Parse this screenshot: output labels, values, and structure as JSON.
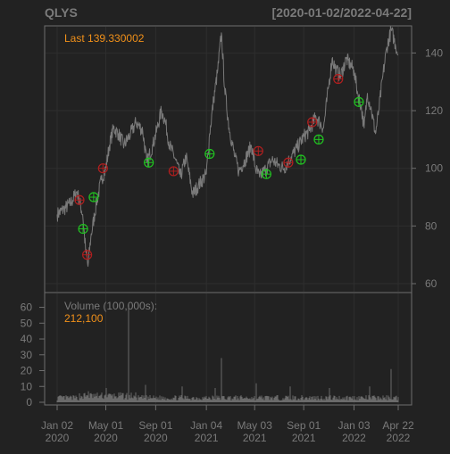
{
  "colors": {
    "background": "#222222",
    "panel": "#222222",
    "frame": "#6e6e6e",
    "grid": "#2e2e2e",
    "price_line": "#7a7a7a",
    "volume_bar": "#6a6a6a",
    "text_dim": "#7a7a7a",
    "accent": "#f0901a",
    "buy_marker": "#21c421",
    "sell_marker": "#b01f1f"
  },
  "header": {
    "symbol": "QLYS",
    "date_range": "[2020-01-02/2022-04-22]"
  },
  "price_panel": {
    "last_label": "Last 139.330002",
    "y_ticks": [
      "60",
      "80",
      "100",
      "120",
      "140"
    ]
  },
  "volume_panel": {
    "title": "Volume (100,000s):",
    "last_value": "212,100",
    "y_ticks": [
      "0",
      "10",
      "20",
      "30",
      "40",
      "50",
      "60"
    ]
  },
  "x_axis": {
    "ticks": [
      {
        "date": "2020-01-02",
        "line1": "Jan 02",
        "line2": "2020"
      },
      {
        "date": "2020-05-01",
        "line1": "May 01",
        "line2": "2020"
      },
      {
        "date": "2020-09-01",
        "line1": "Sep 01",
        "line2": "2020"
      },
      {
        "date": "2021-01-04",
        "line1": "Jan 04",
        "line2": "2021"
      },
      {
        "date": "2021-05-03",
        "line1": "May 03",
        "line2": "2021"
      },
      {
        "date": "2021-09-01",
        "line1": "Sep 01",
        "line2": "2021"
      },
      {
        "date": "2022-01-03",
        "line1": "Jan 03",
        "line2": "2022"
      },
      {
        "date": "2022-04-22",
        "line1": "Apr 22",
        "line2": "2022"
      }
    ]
  },
  "chart_data": {
    "type": "line",
    "x_range": [
      "2020-01-02",
      "2022-04-22"
    ],
    "price_ylim": [
      60,
      146
    ],
    "volume_ylim": [
      0,
      62
    ],
    "price_series": [
      [
        "2020-01-02",
        84
      ],
      [
        "2020-01-20",
        86
      ],
      [
        "2020-02-05",
        88
      ],
      [
        "2020-02-20",
        92
      ],
      [
        "2020-03-05",
        84
      ],
      [
        "2020-03-12",
        72
      ],
      [
        "2020-03-18",
        66
      ],
      [
        "2020-03-25",
        76
      ],
      [
        "2020-04-08",
        88
      ],
      [
        "2020-04-20",
        96
      ],
      [
        "2020-05-01",
        100
      ],
      [
        "2020-05-10",
        108
      ],
      [
        "2020-05-20",
        114
      ],
      [
        "2020-06-01",
        112
      ],
      [
        "2020-06-15",
        108
      ],
      [
        "2020-07-01",
        112
      ],
      [
        "2020-07-15",
        116
      ],
      [
        "2020-07-31",
        113
      ],
      [
        "2020-08-10",
        102
      ],
      [
        "2020-08-25",
        108
      ],
      [
        "2020-09-05",
        114
      ],
      [
        "2020-09-15",
        120
      ],
      [
        "2020-09-25",
        116
      ],
      [
        "2020-10-05",
        108
      ],
      [
        "2020-10-20",
        103
      ],
      [
        "2020-11-01",
        97
      ],
      [
        "2020-11-15",
        104
      ],
      [
        "2020-12-01",
        91
      ],
      [
        "2020-12-15",
        94
      ],
      [
        "2021-01-04",
        98
      ],
      [
        "2021-01-12",
        112
      ],
      [
        "2021-01-22",
        124
      ],
      [
        "2021-02-01",
        134
      ],
      [
        "2021-02-10",
        147
      ],
      [
        "2021-02-18",
        128
      ],
      [
        "2021-03-01",
        114
      ],
      [
        "2021-03-15",
        104
      ],
      [
        "2021-03-25",
        99
      ],
      [
        "2021-04-10",
        103
      ],
      [
        "2021-04-25",
        108
      ],
      [
        "2021-05-05",
        100
      ],
      [
        "2021-05-15",
        97
      ],
      [
        "2021-06-01",
        100
      ],
      [
        "2021-06-15",
        103
      ],
      [
        "2021-07-01",
        101
      ],
      [
        "2021-07-15",
        100
      ],
      [
        "2021-08-01",
        104
      ],
      [
        "2021-08-15",
        107
      ],
      [
        "2021-09-01",
        111
      ],
      [
        "2021-09-15",
        113
      ],
      [
        "2021-10-01",
        118
      ],
      [
        "2021-10-10",
        116
      ],
      [
        "2021-10-20",
        114
      ],
      [
        "2021-11-01",
        128
      ],
      [
        "2021-11-10",
        138
      ],
      [
        "2021-11-20",
        134
      ],
      [
        "2021-12-01",
        132
      ],
      [
        "2021-12-15",
        138
      ],
      [
        "2022-01-03",
        134
      ],
      [
        "2022-01-12",
        126
      ],
      [
        "2022-01-20",
        122
      ],
      [
        "2022-01-28",
        114
      ],
      [
        "2022-02-05",
        126
      ],
      [
        "2022-02-15",
        120
      ],
      [
        "2022-02-25",
        112
      ],
      [
        "2022-03-05",
        120
      ],
      [
        "2022-03-15",
        132
      ],
      [
        "2022-03-25",
        142
      ],
      [
        "2022-04-05",
        148
      ],
      [
        "2022-04-15",
        143
      ],
      [
        "2022-04-22",
        139.330002
      ]
    ],
    "buy_signals": [
      [
        "2020-03-06",
        79
      ],
      [
        "2020-04-01",
        90
      ],
      [
        "2020-08-15",
        102
      ],
      [
        "2021-01-12",
        105
      ],
      [
        "2021-06-01",
        98
      ],
      [
        "2021-08-25",
        103
      ],
      [
        "2021-10-08",
        110
      ],
      [
        "2022-01-15",
        123
      ]
    ],
    "sell_signals": [
      [
        "2020-02-26",
        89
      ],
      [
        "2020-03-16",
        70
      ],
      [
        "2020-04-24",
        100
      ],
      [
        "2020-10-15",
        99
      ],
      [
        "2021-05-12",
        106
      ],
      [
        "2021-07-25",
        102
      ],
      [
        "2021-09-22",
        116
      ],
      [
        "2021-11-25",
        131
      ]
    ],
    "volume_spikes": [
      [
        "2020-03-20",
        7
      ],
      [
        "2020-05-01",
        9
      ],
      [
        "2020-06-26",
        62
      ],
      [
        "2020-08-06",
        11
      ],
      [
        "2020-11-05",
        10
      ],
      [
        "2021-01-25",
        9
      ],
      [
        "2021-02-11",
        28
      ],
      [
        "2021-05-06",
        12
      ],
      [
        "2021-07-29",
        10
      ],
      [
        "2021-11-04",
        9
      ],
      [
        "2022-02-10",
        10
      ],
      [
        "2022-04-05",
        21
      ]
    ],
    "volume_baseline": 3
  }
}
